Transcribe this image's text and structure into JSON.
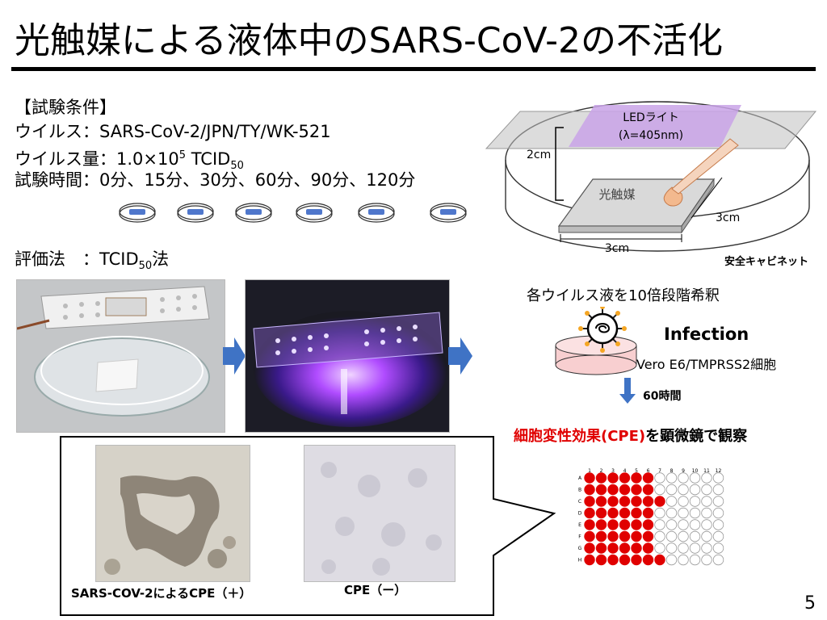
{
  "title": "光触媒による液体中のSARS-CoV-2の不活化",
  "conditions": {
    "header": "【試験条件】",
    "virus": "ウイルス：SARS-CoV-2/JPN/TY/WK-521",
    "amount_prefix": "ウイルス量：1.0×10",
    "amount_exp": "5",
    "amount_unit_main": "TCID",
    "amount_unit_sub": "50",
    "time": "試験時間：0分、15分、30分、60分、90分、120分",
    "method_prefix": "評価法　：TCID",
    "method_sub": "50",
    "method_suffix": "法"
  },
  "apparatus": {
    "led_line1": "LEDライト",
    "led_line2": "(λ=405nm)",
    "height_label": "2cm",
    "catalyst_label": "光触媒",
    "width_label": "3cm",
    "depth_label": "3cm",
    "cabinet_label": "安全キャビネット"
  },
  "workflow": {
    "dilution": "各ウイルス液を10倍段階希釈",
    "infection": "Infection",
    "cells": "Vero E6/TMPRSS2細胞",
    "duration": "60時間",
    "observe_red": "細胞変性効果(CPE)",
    "observe_rest": "を顕微鏡で観察"
  },
  "micrographs": {
    "positive": "SARS-COV-2によるCPE（＋）",
    "negative": "CPE（ー）"
  },
  "plate": {
    "columns": [
      "1",
      "2",
      "3",
      "4",
      "5",
      "6",
      "7",
      "8",
      "9",
      "10",
      "11",
      "12"
    ],
    "rows": [
      "A",
      "B",
      "C",
      "D",
      "E",
      "F",
      "G",
      "H"
    ],
    "positive_counts": [
      6,
      6,
      7,
      6,
      6,
      6,
      6,
      7
    ],
    "positive_color": "#e00000"
  },
  "page_number": "5"
}
